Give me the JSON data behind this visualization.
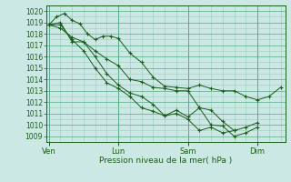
{
  "xlabel": "Pression niveau de la mer( hPa )",
  "bg_color": "#cce8e4",
  "grid_color_major": "#55aa88",
  "grid_color_minor": "#99ccbb",
  "line_color": "#1a5c1a",
  "ylim": [
    1008.5,
    1020.5
  ],
  "yticks_major": [
    1009,
    1010,
    1011,
    1012,
    1013,
    1014,
    1015,
    1016,
    1017,
    1018,
    1019,
    1020
  ],
  "day_labels": [
    "Ven",
    "Lun",
    "Sam",
    "Dim"
  ],
  "day_positions": [
    0.0,
    3.0,
    6.0,
    9.0
  ],
  "xlim": [
    -0.1,
    10.2
  ],
  "series1_x": [
    0,
    0.33,
    0.67,
    1.0,
    1.33,
    1.67,
    2.0,
    2.33,
    2.67,
    3.0,
    3.5,
    4.0,
    4.5,
    5.0,
    5.5,
    6.0,
    6.5,
    7.0,
    7.5,
    8.0,
    8.5,
    9.0,
    9.5,
    10.0
  ],
  "series1_y": [
    1018.8,
    1019.5,
    1019.8,
    1019.2,
    1018.9,
    1018.0,
    1017.5,
    1017.8,
    1017.8,
    1017.6,
    1016.3,
    1015.5,
    1014.2,
    1013.4,
    1013.3,
    1013.2,
    1013.5,
    1013.2,
    1013.0,
    1013.0,
    1012.5,
    1012.2,
    1012.5,
    1013.3
  ],
  "series2_x": [
    0,
    0.5,
    1.0,
    1.5,
    2.0,
    2.5,
    3.0,
    3.5,
    4.0,
    4.5,
    5.0,
    5.5,
    6.0,
    6.5,
    7.0,
    7.5,
    8.0
  ],
  "series2_y": [
    1018.8,
    1018.5,
    1017.7,
    1017.3,
    1016.5,
    1015.8,
    1015.2,
    1014.0,
    1013.8,
    1013.3,
    1013.2,
    1013.0,
    1013.0,
    1011.5,
    1011.3,
    1010.3,
    1009.5
  ],
  "series3_x": [
    0,
    0.5,
    1.0,
    1.5,
    2.0,
    2.5,
    3.0,
    3.5,
    4.0,
    4.5,
    5.0,
    5.5,
    6.0,
    6.5,
    7.0,
    7.5,
    8.0,
    8.5,
    9.0
  ],
  "series3_y": [
    1018.8,
    1018.8,
    1017.5,
    1016.5,
    1015.0,
    1013.7,
    1013.2,
    1012.5,
    1011.5,
    1011.2,
    1010.8,
    1011.3,
    1010.7,
    1011.5,
    1010.0,
    1009.9,
    1009.0,
    1009.3,
    1009.8
  ],
  "series4_x": [
    0,
    0.5,
    1.0,
    1.5,
    2.0,
    2.5,
    3.0,
    3.5,
    4.0,
    4.5,
    5.0,
    5.5,
    6.0,
    6.5,
    7.0,
    7.5,
    8.0,
    8.5,
    9.0
  ],
  "series4_y": [
    1018.8,
    1019.0,
    1017.3,
    1017.3,
    1016.0,
    1014.5,
    1013.5,
    1012.8,
    1012.5,
    1011.8,
    1010.8,
    1011.0,
    1010.5,
    1009.5,
    1009.8,
    1009.3,
    1009.5,
    1009.8,
    1010.2
  ]
}
